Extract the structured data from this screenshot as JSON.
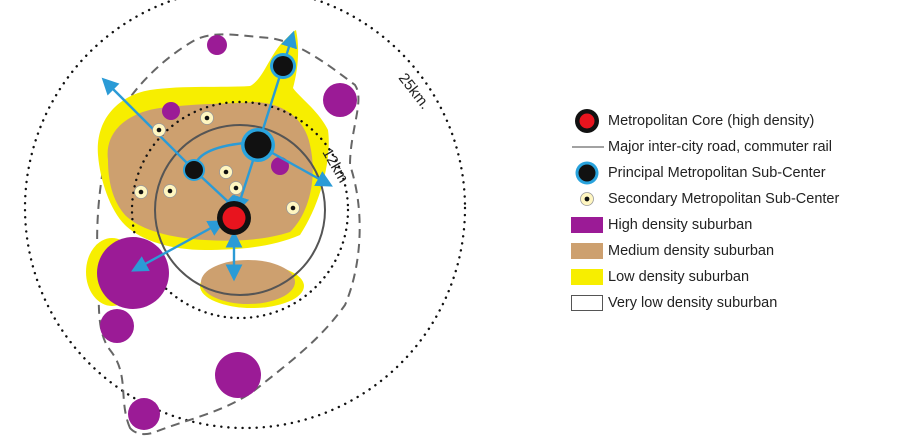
{
  "diagram": {
    "ring_labels": {
      "outer": "25km.",
      "inner": "12km"
    }
  },
  "legend": {
    "items": [
      {
        "key": "core",
        "label": "Metropolitan Core (high density)"
      },
      {
        "key": "road",
        "label": "Major inter-city road, commuter rail"
      },
      {
        "key": "principal",
        "label": "Principal Metropolitan Sub-Center"
      },
      {
        "key": "secondary",
        "label": "Secondary Metropolitan Sub-Center"
      },
      {
        "key": "high",
        "label": "High density suburban"
      },
      {
        "key": "medium",
        "label": "Medium density suburban"
      },
      {
        "key": "low",
        "label": "Low density suburban"
      },
      {
        "key": "verylow",
        "label": "Very low density suburban"
      }
    ]
  },
  "colors": {
    "core_fill": "#e8141e",
    "core_ring": "#111111",
    "principal_ring": "#29a3dd",
    "principal_fill": "#111111",
    "secondary_fill": "#fff6c0",
    "secondary_dot": "#111111",
    "high_density": "#9b1b96",
    "medium_density": "#cda06f",
    "low_density": "#f7ee00",
    "very_low_border": "#555555",
    "arrow": "#2b9bd6"
  }
}
